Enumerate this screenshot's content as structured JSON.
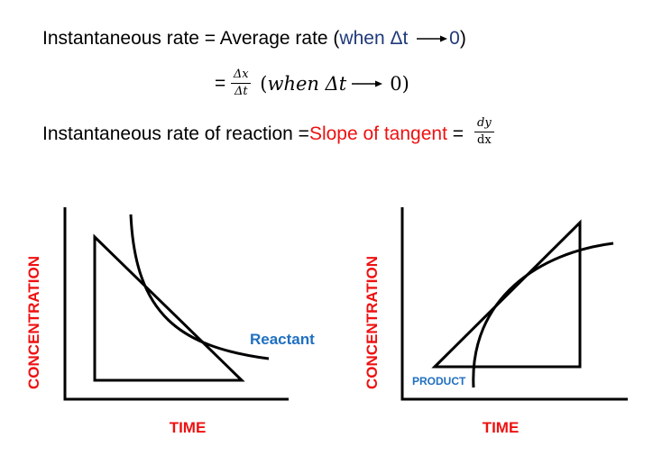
{
  "equations": {
    "line1_prefix": "Instantaneous rate = Average rate (",
    "line1_when": "when Δt",
    "line1_zero": "0",
    "line1_close": ")",
    "line2_eq": "=",
    "frac1_num": "Δx",
    "frac1_den": "Δt",
    "line2_paren_open": "(",
    "line2_when": "when Δt",
    "line2_zero": "0)",
    "line3_prefix": "Instantaneous rate of reaction = ",
    "line3_slope": "Slope of tangent",
    "line3_eq": " = ",
    "frac2_num": "dy",
    "frac2_den": "dx"
  },
  "graphs": {
    "left": {
      "ylabel": "CONCENTRATION",
      "xlabel": "TIME",
      "curve_label": "Reactant"
    },
    "right": {
      "ylabel": "CONCENTRATION",
      "xlabel": "TIME",
      "curve_label": "PRODUCT"
    }
  },
  "colors": {
    "red": "#ee1111",
    "blue_label": "#1f6fc0",
    "navy_text": "#1f3a7a"
  }
}
